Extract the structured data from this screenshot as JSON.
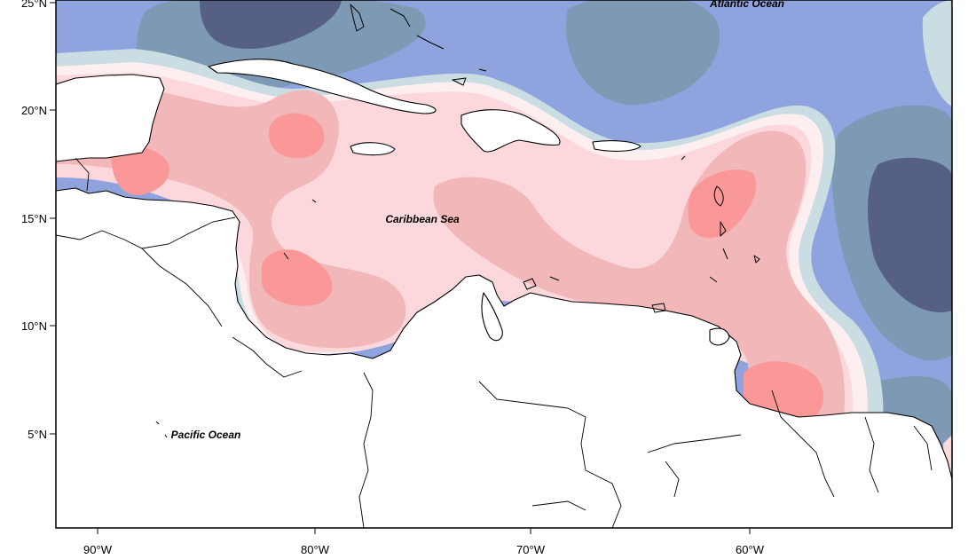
{
  "map": {
    "labels": {
      "atlantic": "Atlantic Ocean",
      "caribbean": "Caribbean Sea",
      "pacific": "Pacific Ocean"
    },
    "lat_ticks": [
      "25°N",
      "20°N",
      "15°N",
      "10°N",
      "5°N"
    ],
    "lon_ticks": [
      "90°W",
      "80°W",
      "70°W",
      "60°W"
    ],
    "colors": {
      "deep_negative": "#556084",
      "negative_slate": "#7d99b4",
      "negative_blue": "#8fa3de",
      "near_zero_blue": "#c9dde2",
      "near_zero_pink": "#fdeff0",
      "positive_light": "#fcd8dc",
      "positive_mid": "#f1b7b9",
      "positive_strong": "#fa9798",
      "land": "#ffffff"
    }
  }
}
